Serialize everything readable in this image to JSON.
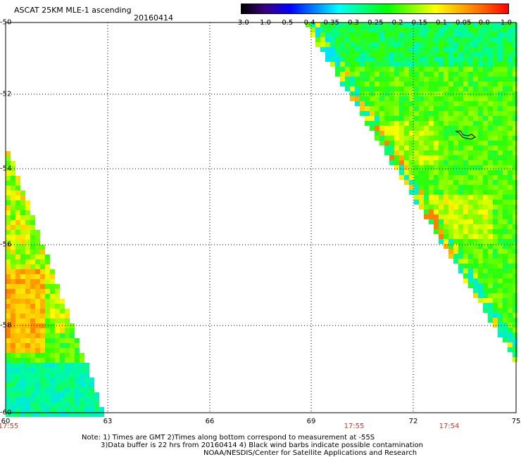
{
  "header": {
    "title": "ASCAT 25KM MLE-1 ascending",
    "date": "20160414"
  },
  "colorbar": {
    "labels": [
      "-3.0",
      "-1.0",
      "-0.5",
      "-0.4",
      "-0.35",
      "-0.3",
      "-0.25",
      "-0.2",
      "-0.15",
      "-0.1",
      "-0.05",
      "0.0",
      "1.0"
    ],
    "colors": [
      "#000000",
      "#3b0080",
      "#0000ff",
      "#0080ff",
      "#00ffff",
      "#00ff80",
      "#00ff00",
      "#80ff00",
      "#ffff00",
      "#ffb000",
      "#ff6000",
      "#ff0000"
    ]
  },
  "axes": {
    "lat_labels": [
      "-50",
      "-52",
      "-54",
      "-56",
      "-58",
      "-60"
    ],
    "lon_labels": [
      "60",
      "63",
      "66",
      "69",
      "72",
      "75"
    ]
  },
  "times": [
    "17:55",
    "17:55",
    "17:54"
  ],
  "notes": {
    "line1": "Note: 1) Times are GMT 2)Times along bottom correspond to measurement at -55S",
    "line2": "3)Data buffer is 22 hrs from 20160414 4) Black wind barbs indicate possible contamination",
    "line3": "NOAA/NESDIS/Center for Satellite Applications and Research"
  }
}
